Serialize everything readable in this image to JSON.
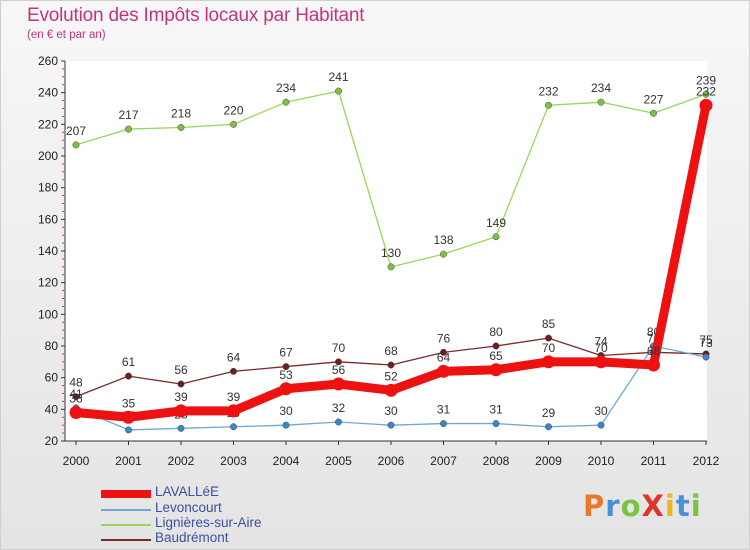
{
  "title": "Evolution des Impôts locaux par Habitant",
  "subtitle": "(en € et par an)",
  "logo": {
    "text": "ProXiti",
    "letters": [
      {
        "ch": "P",
        "color": "#e8792a"
      },
      {
        "ch": "r",
        "color": "#4a90d9"
      },
      {
        "ch": "o",
        "color": "#7cc242"
      },
      {
        "ch": "X",
        "color": "#e0342b"
      },
      {
        "ch": "i",
        "color": "#f0b323"
      },
      {
        "ch": "t",
        "color": "#4a90d9"
      },
      {
        "ch": "i",
        "color": "#7cc242"
      }
    ]
  },
  "chart_data": {
    "type": "line",
    "title": "Evolution des Impôts locaux par Habitant",
    "subtitle": "(en € et par an)",
    "xlabel": "",
    "ylabel": "",
    "ylim": [
      20,
      260
    ],
    "y_ticks": [
      20,
      40,
      60,
      80,
      100,
      120,
      140,
      160,
      180,
      200,
      220,
      240,
      260
    ],
    "grid": false,
    "legend_position": "bottom-left",
    "categories": [
      "2000",
      "2001",
      "2002",
      "2003",
      "2004",
      "2005",
      "2006",
      "2007",
      "2008",
      "2009",
      "2010",
      "2011",
      "2012"
    ],
    "series": [
      {
        "name": "Lignières-sur-Aire",
        "color": "#9ad65f",
        "marker": "#7cc242",
        "values": [
          207,
          217,
          218,
          220,
          234,
          241,
          130,
          138,
          149,
          232,
          234,
          227,
          239
        ],
        "labels": [
          "207",
          "217",
          "218",
          "220",
          "234",
          "241",
          "130",
          "138",
          "149",
          "232",
          "234",
          "227",
          "239"
        ]
      },
      {
        "name": "Baudrémont",
        "color": "#7a2a2a",
        "marker": "#6b1f1f",
        "values": [
          48,
          61,
          56,
          64,
          67,
          70,
          68,
          76,
          80,
          85,
          74,
          76,
          75
        ],
        "labels": [
          "48",
          "61",
          "56",
          "64",
          "67",
          "70",
          "68",
          "76",
          "80",
          "85",
          "74",
          "76",
          "75"
        ]
      },
      {
        "name": "Levoncourt",
        "color": "#6fa7d6",
        "marker": "#3a87c8",
        "values": [
          41,
          27,
          28,
          29,
          30,
          32,
          30,
          31,
          31,
          29,
          30,
          80,
          73
        ],
        "labels": [
          "41",
          "27",
          "28",
          "29",
          "30",
          "32",
          "30",
          "31",
          "31",
          "29",
          "30",
          "80",
          "73"
        ]
      },
      {
        "name": "LAVALLéE",
        "color": "#ee1111",
        "marker": "#ee1111",
        "values": [
          38,
          35,
          39,
          39,
          53,
          56,
          52,
          64,
          65,
          70,
          70,
          68,
          232
        ],
        "labels": [
          "38",
          "35",
          "39",
          "39",
          "53",
          "56",
          "52",
          "64",
          "65",
          "70",
          "70",
          "68",
          "232"
        ]
      }
    ],
    "legend": [
      "LAVALLéE",
      "Levoncourt",
      "Lignières-sur-Aire",
      "Baudrémont"
    ]
  }
}
